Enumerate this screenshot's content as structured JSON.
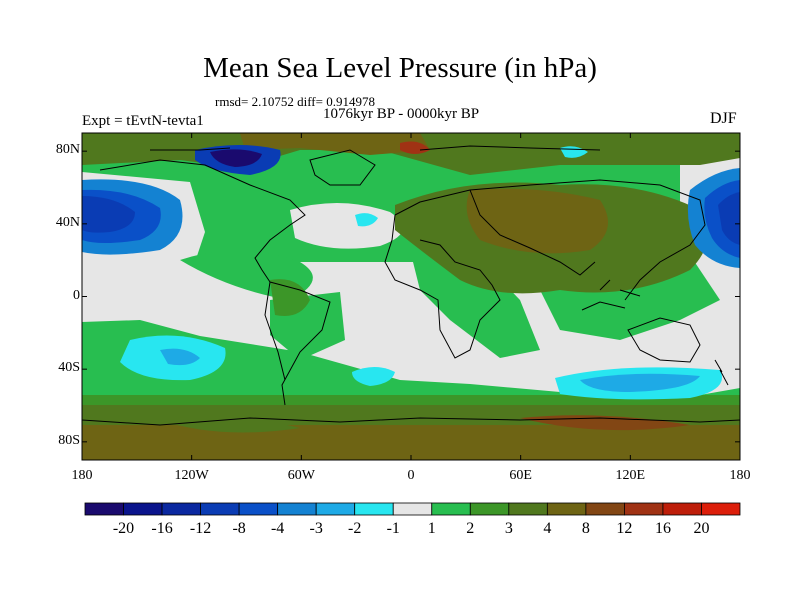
{
  "title": "Mean Sea Level Pressure (in hPa)",
  "stats": "rmsd= 2.10752 diff= 0.914978",
  "period": "1076kyr BP - 0000kyr BP",
  "expt": "Expt = tEvtN-tevta1",
  "season": "DJF",
  "map": {
    "lat_ticks": [
      {
        "label": "80N",
        "lat": 80
      },
      {
        "label": "40N",
        "lat": 40
      },
      {
        "label": "0",
        "lat": 0
      },
      {
        "label": "40S",
        "lat": -40
      },
      {
        "label": "80S",
        "lat": -80
      }
    ],
    "lon_ticks": [
      {
        "label": "180",
        "lon": -180
      },
      {
        "label": "120W",
        "lon": -120
      },
      {
        "label": "60W",
        "lon": -60
      },
      {
        "label": "0",
        "lon": 0
      },
      {
        "label": "60E",
        "lon": 60
      },
      {
        "label": "120E",
        "lon": 120
      },
      {
        "label": "180",
        "lon": 180
      }
    ]
  },
  "colorbar": {
    "colors": [
      "#1a0a6e",
      "#0a148c",
      "#0a28a0",
      "#0a3cb4",
      "#0a50c8",
      "#1482d2",
      "#1eaae6",
      "#28e6f0",
      "#e6e6e6",
      "#28be50",
      "#3c9628",
      "#50781e",
      "#6e6414",
      "#824614",
      "#a03214",
      "#be1e0a",
      "#dc1e0a"
    ],
    "labels": [
      "-20",
      "-16",
      "-12",
      "-8",
      "-4",
      "-3",
      "-2",
      "-1",
      "1",
      "2",
      "3",
      "4",
      "8",
      "12",
      "16",
      "20"
    ]
  }
}
